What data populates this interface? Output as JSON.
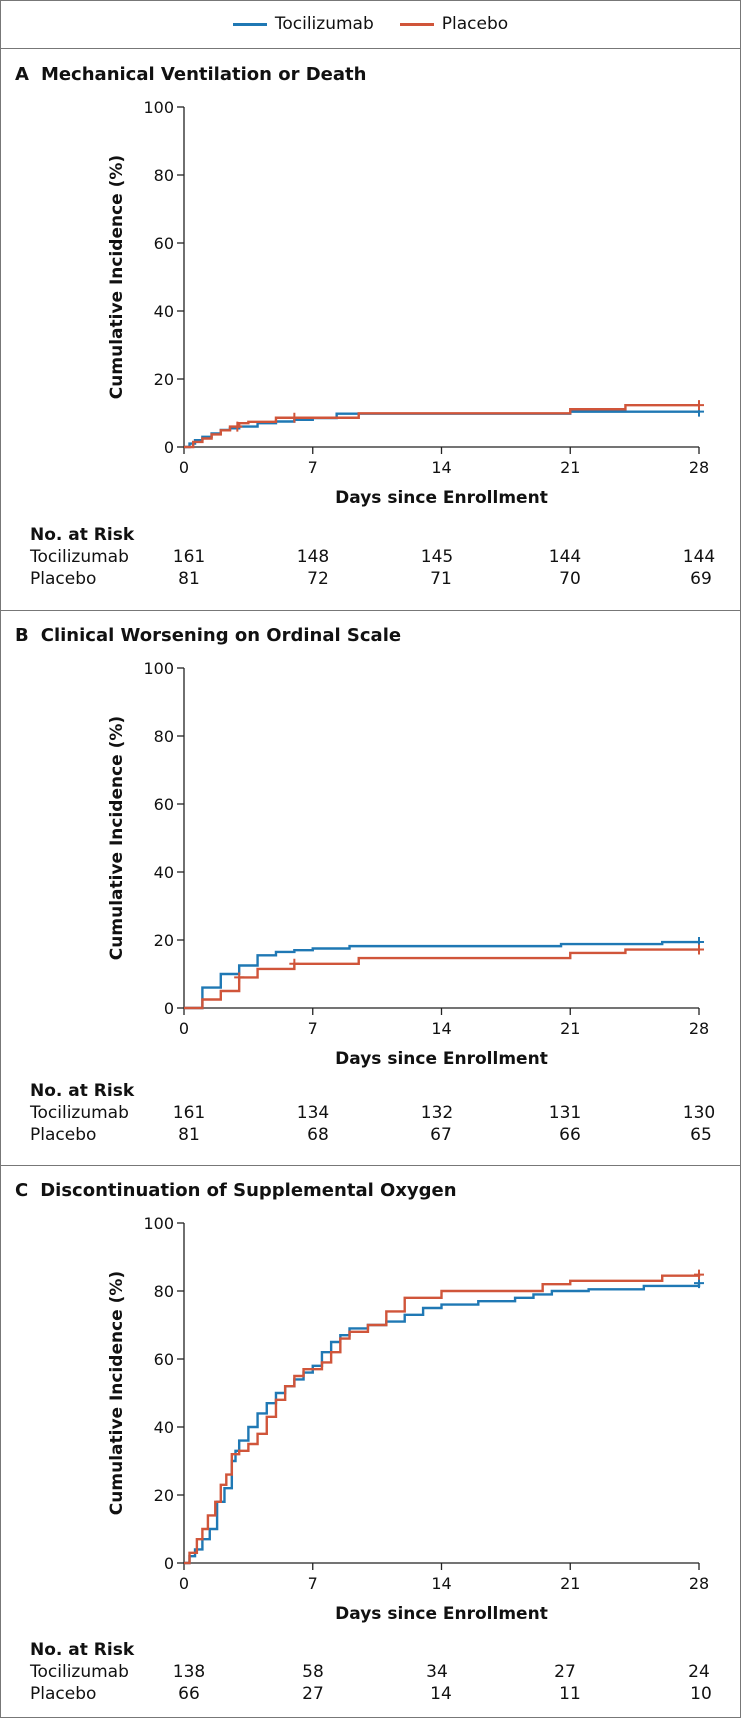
{
  "legend": [
    {
      "label": "Tocilizumab",
      "color": "#1f78b4"
    },
    {
      "label": "Placebo",
      "color": "#d0553a"
    }
  ],
  "chart_data": [
    {
      "type": "line",
      "letter": "A",
      "title": "Mechanical Ventilation or Death",
      "xlabel": "Days since Enrollment",
      "ylabel": "Cumulative Incidence (%)",
      "xlim": [
        0,
        28
      ],
      "ylim": [
        0,
        100
      ],
      "xticks": [
        0,
        7,
        14,
        21,
        28
      ],
      "yticks": [
        0,
        20,
        40,
        60,
        80,
        100
      ],
      "series": [
        {
          "name": "Tocilizumab",
          "color": "#1f78b4",
          "x": [
            0,
            0.3,
            0.6,
            1,
            1.5,
            2,
            2.5,
            3,
            4,
            5,
            6,
            7,
            8.3,
            14,
            21,
            28
          ],
          "y": [
            0,
            1,
            2,
            3,
            4,
            5,
            5.5,
            6,
            7,
            7.5,
            8,
            8.5,
            9.8,
            9.8,
            10.4,
            10.4
          ],
          "censored_x": [
            28
          ]
        },
        {
          "name": "Placebo",
          "color": "#d0553a",
          "x": [
            0,
            0.5,
            1,
            1.5,
            2,
            2.5,
            3,
            3.5,
            5,
            6,
            9.5,
            21,
            24,
            28
          ],
          "y": [
            0,
            1.5,
            2.5,
            3.7,
            4.9,
            6,
            7,
            7.4,
            8.6,
            8.6,
            9.9,
            11.1,
            12.3,
            12.3
          ],
          "censored_x": [
            2.9,
            6,
            28
          ]
        }
      ],
      "risk_table": {
        "header": "No. at Risk",
        "days": [
          0,
          7,
          14,
          21,
          28
        ],
        "rows": [
          {
            "label": "Tocilizumab",
            "values": [
              "161",
              "148",
              "145",
              "144",
              "144"
            ]
          },
          {
            "label": "Placebo",
            "values": [
              "81",
              "72",
              "71",
              "70",
              "69"
            ]
          }
        ]
      }
    },
    {
      "type": "line",
      "letter": "B",
      "title": "Clinical Worsening on Ordinal Scale",
      "xlabel": "Days since Enrollment",
      "ylabel": "Cumulative Incidence (%)",
      "xlim": [
        0,
        28
      ],
      "ylim": [
        0,
        100
      ],
      "xticks": [
        0,
        7,
        14,
        21,
        28
      ],
      "yticks": [
        0,
        20,
        40,
        60,
        80,
        100
      ],
      "series": [
        {
          "name": "Tocilizumab",
          "color": "#1f78b4",
          "x": [
            0,
            1,
            2,
            3,
            4,
            5,
            6,
            7,
            9,
            14,
            20.5,
            26,
            28
          ],
          "y": [
            0,
            6,
            10,
            12.5,
            15.5,
            16.5,
            17,
            17.5,
            18.2,
            18.2,
            18.8,
            19.4,
            19.4
          ],
          "censored_x": [
            28
          ]
        },
        {
          "name": "Placebo",
          "color": "#d0553a",
          "x": [
            0,
            1,
            2,
            3,
            4,
            6,
            9.5,
            21,
            24,
            28
          ],
          "y": [
            0,
            2.5,
            5,
            9,
            11.5,
            13,
            14.7,
            16.2,
            17.2,
            17.2
          ],
          "censored_x": [
            3,
            6,
            28
          ]
        }
      ],
      "risk_table": {
        "header": "No. at Risk",
        "days": [
          0,
          7,
          14,
          21,
          28
        ],
        "rows": [
          {
            "label": "Tocilizumab",
            "values": [
              "161",
              "134",
              "132",
              "131",
              "130"
            ]
          },
          {
            "label": "Placebo",
            "values": [
              "81",
              "68",
              "67",
              "66",
              "65"
            ]
          }
        ]
      }
    },
    {
      "type": "line",
      "letter": "C",
      "title": "Discontinuation of Supplemental Oxygen",
      "xlabel": "Days since Enrollment",
      "ylabel": "Cumulative Incidence (%)",
      "xlim": [
        0,
        28
      ],
      "ylim": [
        0,
        100
      ],
      "xticks": [
        0,
        7,
        14,
        21,
        28
      ],
      "yticks": [
        0,
        20,
        40,
        60,
        80,
        100
      ],
      "series": [
        {
          "name": "Tocilizumab",
          "color": "#1f78b4",
          "x": [
            0,
            0.3,
            0.6,
            1,
            1.4,
            1.8,
            2.2,
            2.6,
            2.8,
            3,
            3.5,
            4,
            4.5,
            5,
            5.5,
            6,
            6.5,
            7,
            7.5,
            8,
            8.5,
            9,
            10,
            11,
            12,
            13,
            14,
            16,
            18,
            19,
            20,
            22,
            25,
            28
          ],
          "y": [
            0,
            2,
            4,
            7,
            10,
            18,
            22,
            30,
            33,
            36,
            40,
            44,
            47,
            50,
            52,
            54,
            56,
            58,
            62,
            65,
            67,
            69,
            70,
            71,
            73,
            75,
            76,
            77,
            78,
            79,
            80,
            80.5,
            81.5,
            82.3
          ],
          "censored_x": [
            28
          ]
        },
        {
          "name": "Placebo",
          "color": "#d0553a",
          "x": [
            0,
            0.3,
            0.7,
            1,
            1.3,
            1.7,
            2,
            2.3,
            2.6,
            3,
            3.5,
            4,
            4.5,
            5,
            5.5,
            6,
            6.5,
            7.5,
            8,
            8.5,
            9,
            10,
            11,
            12,
            14,
            19.5,
            21,
            26,
            28
          ],
          "y": [
            0,
            3,
            7,
            10,
            14,
            18,
            23,
            26,
            32,
            33,
            35,
            38,
            43,
            48,
            52,
            55,
            57,
            59,
            62,
            66,
            68,
            70,
            74,
            78,
            80,
            82,
            83,
            84.5,
            84.8
          ],
          "censored_x": [
            28
          ]
        }
      ],
      "risk_table": {
        "header": "No. at Risk",
        "days": [
          0,
          7,
          14,
          21,
          28
        ],
        "rows": [
          {
            "label": "Tocilizumab",
            "values": [
              "138",
              "58",
              "34",
              "27",
              "24"
            ]
          },
          {
            "label": "Placebo",
            "values": [
              "66",
              "27",
              "14",
              "11",
              "10"
            ]
          }
        ]
      }
    }
  ]
}
